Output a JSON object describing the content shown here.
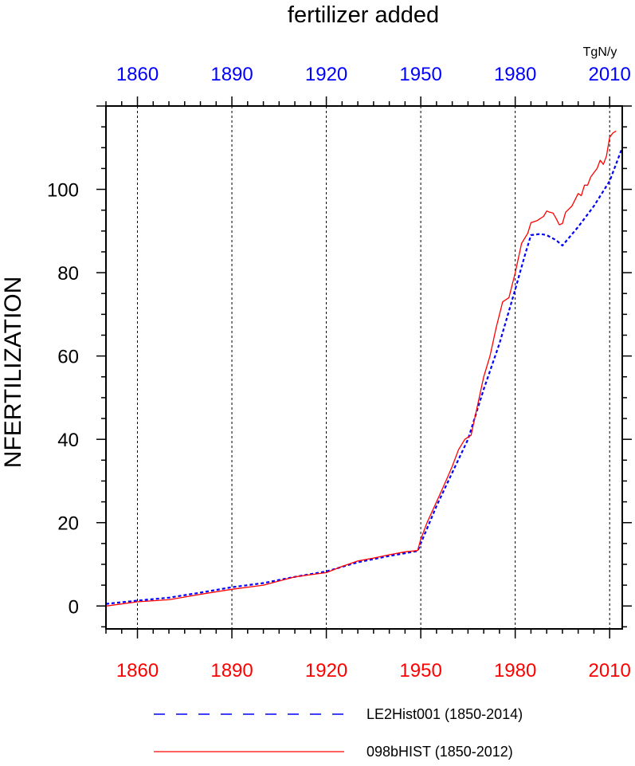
{
  "chart_data": {
    "type": "line",
    "title": "fertilizer added",
    "units": "TgN/y",
    "xlabel": "",
    "ylabel": "NFERTILIZATION",
    "xlim": [
      1850,
      2014
    ],
    "ylim": [
      -5.5,
      120
    ],
    "x_ticks": [
      1860,
      1890,
      1920,
      1950,
      1980,
      2010
    ],
    "y_ticks": [
      0,
      20,
      40,
      60,
      80,
      100
    ],
    "grid": "vertical dashed at major x ticks",
    "colors": {
      "top_ticks": "#0000ff",
      "bottom_ticks": "#ff0000",
      "grid": "#000000"
    },
    "series": [
      {
        "name": "LE2Hist001 (1850-2014)",
        "color": "#0000ff",
        "style": "dashed",
        "x": [
          1850,
          1860,
          1870,
          1880,
          1890,
          1900,
          1910,
          1920,
          1930,
          1940,
          1949,
          1950,
          1955,
          1960,
          1965,
          1970,
          1975,
          1980,
          1983,
          1985,
          1988,
          1990,
          1993,
          1995,
          2000,
          2005,
          2010,
          2014
        ],
        "values": [
          0.5,
          1.3,
          2.0,
          3.2,
          4.5,
          5.5,
          7.0,
          8.3,
          10.5,
          12.0,
          13.2,
          15.0,
          24.0,
          32.0,
          40.0,
          52.0,
          63.0,
          76.0,
          84.0,
          89.0,
          89.3,
          89.0,
          87.8,
          86.5,
          91.0,
          96.0,
          102.0,
          110.0
        ]
      },
      {
        "name": "098bHIST (1850-2012)",
        "color": "#ff0000",
        "style": "solid",
        "x": [
          1850,
          1860,
          1870,
          1880,
          1890,
          1900,
          1905,
          1910,
          1915,
          1920,
          1925,
          1930,
          1935,
          1940,
          1945,
          1949,
          1950,
          1952,
          1955,
          1958,
          1960,
          1962,
          1964,
          1966,
          1968,
          1970,
          1972,
          1974,
          1976,
          1978,
          1980,
          1982,
          1984,
          1985,
          1987,
          1989,
          1990,
          1991,
          1992,
          1993,
          1994,
          1995,
          1996,
          1998,
          2000,
          2001,
          2002,
          2003,
          2004,
          2005,
          2006,
          2007,
          2008,
          2009,
          2010,
          2011,
          2012
        ],
        "values": [
          0.0,
          1.0,
          1.5,
          2.8,
          4.0,
          5.0,
          6.0,
          7.0,
          7.5,
          8.0,
          9.5,
          10.8,
          11.5,
          12.3,
          13.0,
          13.3,
          16.0,
          20.0,
          25.0,
          30.0,
          33.5,
          37.5,
          40.0,
          41.0,
          48.0,
          55.0,
          60.0,
          67.0,
          73.0,
          74.0,
          80.0,
          87.0,
          89.5,
          92.0,
          92.5,
          93.5,
          94.8,
          94.5,
          94.3,
          93.0,
          91.5,
          91.8,
          94.5,
          96.0,
          99.0,
          98.5,
          101.0,
          101.0,
          103.0,
          104.0,
          105.0,
          107.0,
          106.0,
          108.0,
          112.5,
          113.5,
          114.0
        ]
      }
    ]
  }
}
